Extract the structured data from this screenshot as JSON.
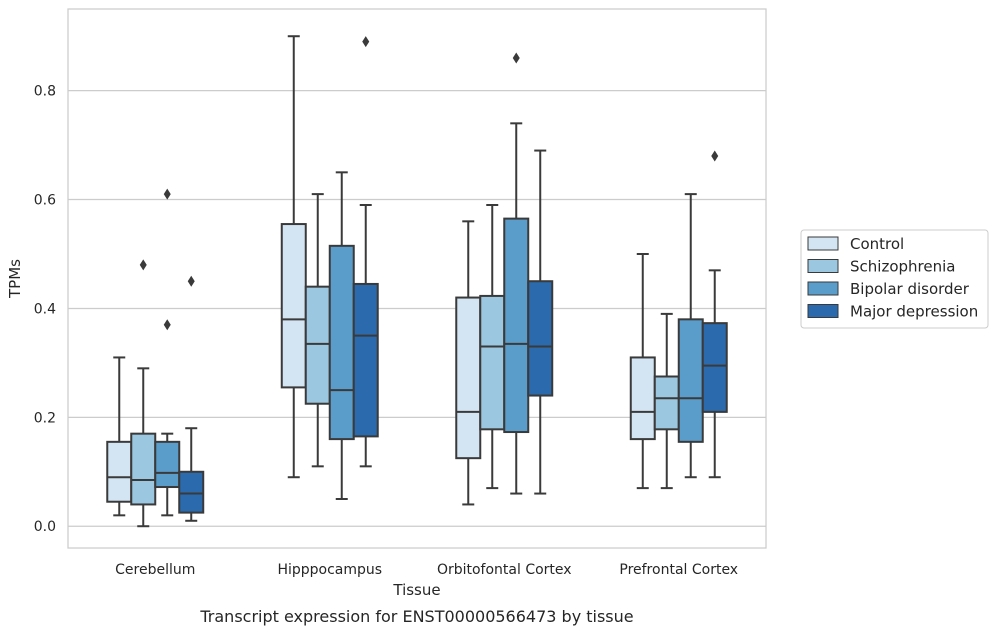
{
  "chart_data": {
    "type": "boxplot",
    "title": "",
    "caption": "Transcript expression for ENST00000566473 by tissue",
    "xlabel": "Tissue",
    "ylabel": "TPMs",
    "ylim": [
      -0.04,
      0.95
    ],
    "yticks": [
      "0.0",
      "0.2",
      "0.4",
      "0.6",
      "0.8"
    ],
    "grid": "horizontal",
    "legend_position": "right",
    "categories": [
      "Cerebellum",
      "Hipppocampus",
      "Orbitofontal Cortex",
      "Prefrontal Cortex"
    ],
    "series": [
      {
        "name": "Control",
        "color": "#d3e4f3",
        "boxes": [
          {
            "whislo": 0.02,
            "q1": 0.045,
            "med": 0.09,
            "q3": 0.155,
            "whishi": 0.31,
            "fliers": []
          },
          {
            "whislo": 0.09,
            "q1": 0.255,
            "med": 0.38,
            "q3": 0.555,
            "whishi": 0.9,
            "fliers": []
          },
          {
            "whislo": 0.04,
            "q1": 0.125,
            "med": 0.21,
            "q3": 0.42,
            "whishi": 0.56,
            "fliers": []
          },
          {
            "whislo": 0.07,
            "q1": 0.16,
            "med": 0.21,
            "q3": 0.31,
            "whishi": 0.5,
            "fliers": []
          }
        ]
      },
      {
        "name": "Schizophrenia",
        "color": "#9cc7e0",
        "boxes": [
          {
            "whislo": 0.0,
            "q1": 0.04,
            "med": 0.085,
            "q3": 0.17,
            "whishi": 0.29,
            "fliers": [
              0.48
            ]
          },
          {
            "whislo": 0.11,
            "q1": 0.225,
            "med": 0.335,
            "q3": 0.44,
            "whishi": 0.61,
            "fliers": []
          },
          {
            "whislo": 0.07,
            "q1": 0.178,
            "med": 0.33,
            "q3": 0.423,
            "whishi": 0.59,
            "fliers": []
          },
          {
            "whislo": 0.07,
            "q1": 0.178,
            "med": 0.235,
            "q3": 0.275,
            "whishi": 0.39,
            "fliers": []
          }
        ]
      },
      {
        "name": "Bipolar disorder",
        "color": "#5a9dcb",
        "boxes": [
          {
            "whislo": 0.02,
            "q1": 0.072,
            "med": 0.098,
            "q3": 0.155,
            "whishi": 0.17,
            "fliers": [
              0.61,
              0.37
            ]
          },
          {
            "whislo": 0.05,
            "q1": 0.16,
            "med": 0.25,
            "q3": 0.515,
            "whishi": 0.65,
            "fliers": []
          },
          {
            "whislo": 0.06,
            "q1": 0.173,
            "med": 0.335,
            "q3": 0.565,
            "whishi": 0.74,
            "fliers": [
              0.86
            ]
          },
          {
            "whislo": 0.09,
            "q1": 0.155,
            "med": 0.235,
            "q3": 0.38,
            "whishi": 0.61,
            "fliers": []
          }
        ]
      },
      {
        "name": "Major depression",
        "color": "#2a6aad",
        "boxes": [
          {
            "whislo": 0.01,
            "q1": 0.025,
            "med": 0.06,
            "q3": 0.1,
            "whishi": 0.18,
            "fliers": [
              0.45
            ]
          },
          {
            "whislo": 0.11,
            "q1": 0.165,
            "med": 0.35,
            "q3": 0.445,
            "whishi": 0.59,
            "fliers": [
              0.89
            ]
          },
          {
            "whislo": 0.06,
            "q1": 0.24,
            "med": 0.33,
            "q3": 0.45,
            "whishi": 0.69,
            "fliers": []
          },
          {
            "whislo": 0.09,
            "q1": 0.21,
            "med": 0.295,
            "q3": 0.373,
            "whishi": 0.47,
            "fliers": [
              0.68
            ]
          }
        ]
      }
    ]
  }
}
